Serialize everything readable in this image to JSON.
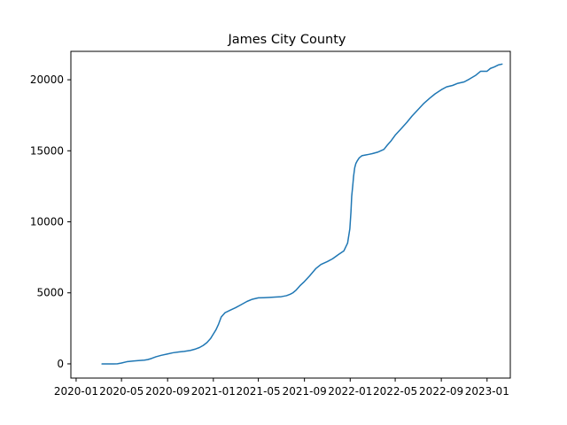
{
  "chart_data": {
    "type": "line",
    "title": "James City County",
    "xlabel": "",
    "ylabel": "",
    "x_ticks": [
      "2020-01",
      "2020-05",
      "2020-09",
      "2021-01",
      "2021-05",
      "2021-09",
      "2022-01",
      "2022-05",
      "2022-09",
      "2023-01"
    ],
    "y_ticks": [
      "0",
      "5000",
      "10000",
      "15000",
      "20000"
    ],
    "xlim": [
      "2019-12-18",
      "2023-03-04"
    ],
    "ylim": [
      -1000,
      22000
    ],
    "grid": false,
    "line_color": "#1f77b4",
    "series": [
      {
        "x": [
          "2020-03-10",
          "2020-03-20",
          "2020-04-01",
          "2020-04-10",
          "2020-04-20",
          "2020-05-01",
          "2020-05-15",
          "2020-06-01",
          "2020-06-15",
          "2020-07-01",
          "2020-07-10",
          "2020-07-20",
          "2020-08-01",
          "2020-08-15",
          "2020-09-01",
          "2020-09-15",
          "2020-10-01",
          "2020-10-15",
          "2020-11-01",
          "2020-11-15",
          "2020-11-25",
          "2020-12-05",
          "2020-12-15",
          "2020-12-25",
          "2021-01-01",
          "2021-01-08",
          "2021-01-15",
          "2021-01-22",
          "2021-02-01",
          "2021-02-15",
          "2021-03-01",
          "2021-03-15",
          "2021-04-01",
          "2021-04-15",
          "2021-05-01",
          "2021-05-15",
          "2021-06-01",
          "2021-06-15",
          "2021-07-01",
          "2021-07-15",
          "2021-07-25",
          "2021-08-01",
          "2021-08-10",
          "2021-08-20",
          "2021-09-01",
          "2021-09-15",
          "2021-10-01",
          "2021-10-15",
          "2021-11-01",
          "2021-11-15",
          "2021-12-01",
          "2021-12-15",
          "2021-12-25",
          "2021-12-31",
          "2022-01-03",
          "2022-01-05",
          "2022-01-08",
          "2022-01-10",
          "2022-01-13",
          "2022-01-16",
          "2022-01-20",
          "2022-01-25",
          "2022-02-01",
          "2022-02-10",
          "2022-02-20",
          "2022-03-01",
          "2022-03-15",
          "2022-04-01",
          "2022-04-10",
          "2022-04-20",
          "2022-05-01",
          "2022-05-15",
          "2022-06-01",
          "2022-06-15",
          "2022-07-01",
          "2022-07-15",
          "2022-08-01",
          "2022-08-15",
          "2022-09-01",
          "2022-09-15",
          "2022-10-01",
          "2022-10-15",
          "2022-11-01",
          "2022-11-15",
          "2022-12-01",
          "2022-12-15",
          "2023-01-01",
          "2023-01-10",
          "2023-01-20",
          "2023-02-01",
          "2023-02-10"
        ],
        "values": [
          0,
          0,
          0,
          0,
          5,
          60,
          150,
          200,
          230,
          260,
          300,
          380,
          500,
          600,
          700,
          780,
          840,
          880,
          950,
          1050,
          1150,
          1300,
          1500,
          1800,
          2100,
          2400,
          2800,
          3300,
          3600,
          3780,
          3950,
          4150,
          4400,
          4550,
          4650,
          4660,
          4680,
          4700,
          4730,
          4800,
          4900,
          5000,
          5200,
          5500,
          5800,
          6200,
          6700,
          7000,
          7200,
          7400,
          7700,
          7950,
          8500,
          9500,
          10700,
          11800,
          12600,
          13200,
          13800,
          14100,
          14300,
          14500,
          14650,
          14700,
          14750,
          14800,
          14900,
          15100,
          15400,
          15700,
          16100,
          16500,
          17000,
          17450,
          17900,
          18300,
          18700,
          19000,
          19300,
          19500,
          19600,
          19750,
          19850,
          20050,
          20300,
          20600,
          20600,
          20800,
          20900,
          21050,
          21100
        ]
      }
    ]
  }
}
